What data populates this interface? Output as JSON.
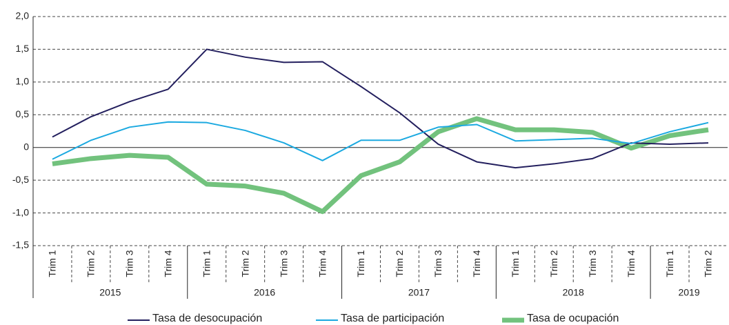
{
  "chart_data": {
    "type": "line",
    "groups": [
      {
        "label": "2015",
        "categories": [
          "Trim 1",
          "Trim 2",
          "Trim 3",
          "Trim 4"
        ]
      },
      {
        "label": "2016",
        "categories": [
          "Trim 1",
          "Trim 2",
          "Trim 3",
          "Trim 4"
        ]
      },
      {
        "label": "2017",
        "categories": [
          "Trim 1",
          "Trim 2",
          "Trim 3",
          "Trim 4"
        ]
      },
      {
        "label": "2018",
        "categories": [
          "Trim 1",
          "Trim 2",
          "Trim 3",
          "Trim 4"
        ]
      },
      {
        "label": "2019",
        "categories": [
          "Trim 1",
          "Trim 2"
        ]
      }
    ],
    "series": [
      {
        "name": "Tasa de desocupación",
        "color": "#231f5e",
        "width": 2,
        "values": [
          0.16,
          0.47,
          0.7,
          0.89,
          1.5,
          1.38,
          1.3,
          1.31,
          0.93,
          0.53,
          0.05,
          -0.22,
          -0.31,
          -0.25,
          -0.17,
          0.07,
          0.05,
          0.07
        ]
      },
      {
        "name": "Tasa de participación",
        "color": "#1ba9e0",
        "width": 2,
        "values": [
          -0.18,
          0.11,
          0.31,
          0.39,
          0.38,
          0.26,
          0.07,
          -0.2,
          0.11,
          0.11,
          0.31,
          0.35,
          0.1,
          0.12,
          0.14,
          0.06,
          0.24,
          0.38
        ]
      },
      {
        "name": "Tasa de ocupación",
        "color": "#72c27d",
        "width": 7,
        "values": [
          -0.25,
          -0.17,
          -0.12,
          -0.15,
          -0.56,
          -0.59,
          -0.7,
          -0.98,
          -0.43,
          -0.22,
          0.24,
          0.44,
          0.27,
          0.27,
          0.23,
          -0.01,
          0.18,
          0.27
        ]
      }
    ],
    "ylim": [
      -1.5,
      2.0
    ],
    "yticks": [
      {
        "value": -1.5,
        "label": "-1,5"
      },
      {
        "value": -1.0,
        "label": "-1,0"
      },
      {
        "value": -0.5,
        "label": "-0,5"
      },
      0,
      {
        "value": 0.5,
        "label": "0,5"
      },
      {
        "value": 1.0,
        "label": "1,0"
      },
      {
        "value": 1.5,
        "label": "1,5"
      },
      {
        "value": 2.0,
        "label": "2,0"
      }
    ],
    "grid": true
  }
}
